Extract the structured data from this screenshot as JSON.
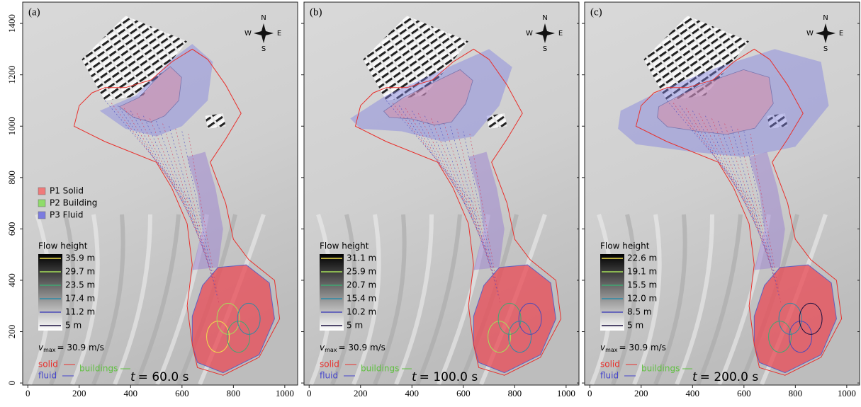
{
  "axes": {
    "xlim": [
      -20,
      1050
    ],
    "ylim": [
      -8,
      1483
    ],
    "xticks": [
      0,
      200,
      400,
      600,
      800,
      1000
    ],
    "yticks": [
      0,
      200,
      400,
      600,
      800,
      1000,
      1200,
      1400
    ]
  },
  "compass": {
    "n": "N",
    "e": "E",
    "s": "S",
    "w": "W"
  },
  "legend": {
    "items": [
      {
        "name": "P1 Solid",
        "color": "#f07a7a"
      },
      {
        "name": "P2 Building",
        "color": "#8fdc6a"
      },
      {
        "name": "P3 Fluid",
        "color": "#7b7be0"
      }
    ]
  },
  "level_colors": [
    "#f2e14a",
    "#a6e05a",
    "#3fa873",
    "#2c8aa6",
    "#4a4ab8",
    "#1a1040"
  ],
  "panels": [
    {
      "label": "(a)",
      "flow_height_title": "Flow height",
      "levels": [
        "35.9 m",
        "29.7 m",
        "23.5 m",
        "17.4 m",
        "11.2 m",
        "5 m"
      ],
      "vmax": {
        "symbol": "v",
        "sub": "max",
        "text": "= 30.9 m/s"
      },
      "arrows": {
        "solid": "solid",
        "fluid": "fluid",
        "buildings": "buildings"
      },
      "time_symbol": "t",
      "time": "= 60.0 s"
    },
    {
      "label": "(b)",
      "flow_height_title": "Flow height",
      "levels": [
        "31.1 m",
        "25.9 m",
        "20.7 m",
        "15.4 m",
        "10.2 m",
        "5 m"
      ],
      "vmax": {
        "symbol": "v",
        "sub": "max",
        "text": "= 30.9 m/s"
      },
      "arrows": {
        "solid": "solid",
        "fluid": "fluid",
        "buildings": "buildings"
      },
      "time_symbol": "t",
      "time": "= 100.0 s"
    },
    {
      "label": "(c)",
      "flow_height_title": "Flow height",
      "levels": [
        "22.6 m",
        "19.1 m",
        "15.5 m",
        "12.0 m",
        "8.5 m",
        "5 m"
      ],
      "vmax": {
        "symbol": "v",
        "sub": "max",
        "text": "= 30.9 m/s"
      },
      "arrows": {
        "solid": "solid",
        "fluid": "fluid",
        "buildings": "buildings"
      },
      "time_symbol": "t",
      "time": "= 200.0 s"
    }
  ]
}
